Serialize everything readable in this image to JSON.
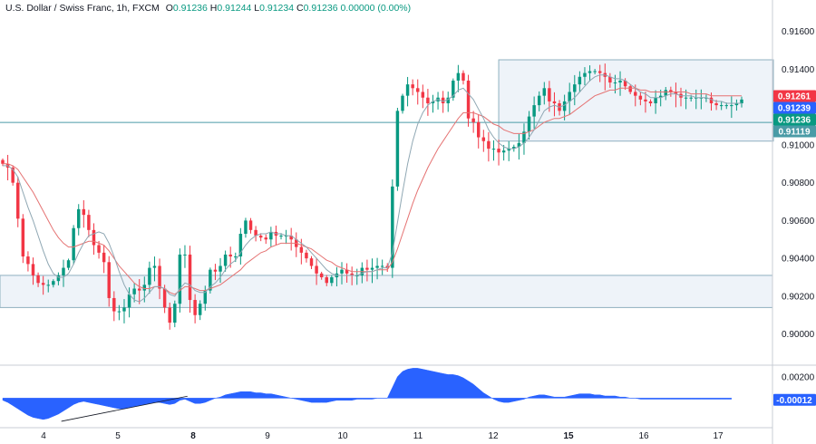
{
  "header": {
    "symbol": "U.S. Dollar / Swiss Franc, 1h, FXCM",
    "open_label": "O",
    "open_value": "0.91236",
    "high_label": "H",
    "high_value": "0.91244",
    "low_label": "L",
    "low_value": "0.91234",
    "close_label": "C",
    "close_value": "0.91236",
    "change": "0.00000 (0.00%)"
  },
  "colors": {
    "up": "#089981",
    "down": "#f23645",
    "ma_fast": "#8fa7b3",
    "ma_slow": "#e57373",
    "histogram": "#2962ff",
    "level_line": "#4a9ba6",
    "zone_fill": "#eef3f9",
    "zone_border": "#8fb0c0"
  },
  "chart_data": {
    "type": "candlestick",
    "price_axis": {
      "ticks": [
        0.916,
        0.914,
        0.912,
        0.91,
        0.908,
        0.906,
        0.904,
        0.902,
        0.9
      ],
      "tick_labels": [
        "0.91600",
        "0.91400",
        "0.91200",
        "0.91000",
        "0.90800",
        "0.90600",
        "0.90400",
        "0.90200",
        "0.90000"
      ],
      "range": [
        0.8984,
        0.9168
      ]
    },
    "time_axis": {
      "labels": [
        "4",
        "5",
        "8",
        "9",
        "10",
        "11",
        "12",
        "15",
        "16",
        "17"
      ],
      "bold": [
        "8",
        "15"
      ]
    },
    "badges": [
      {
        "value": 0.91261,
        "label": "0.91261",
        "color": "#f23645"
      },
      {
        "value": 0.91239,
        "label": "0.91239",
        "color": "#2962ff"
      },
      {
        "value": 0.91236,
        "label": "0.91236",
        "color": "#089981"
      },
      {
        "value": 0.91119,
        "label": "0.91119",
        "color": "#4a9ba6"
      }
    ],
    "horizontal_level": 0.91119,
    "zones": [
      {
        "from": 0.9014,
        "to": 0.9031
      },
      {
        "from": 0.9102,
        "to": 0.9145
      }
    ],
    "closes": [
      0.909,
      0.9088,
      0.908,
      0.9061,
      0.9041,
      0.9037,
      0.9031,
      0.9027,
      0.9026,
      0.9026,
      0.9028,
      0.9031,
      0.9035,
      0.9039,
      0.9056,
      0.9066,
      0.9063,
      0.9055,
      0.9047,
      0.9043,
      0.9038,
      0.9019,
      0.9012,
      0.9012,
      0.9014,
      0.9021,
      0.9024,
      0.9023,
      0.9026,
      0.9035,
      0.9036,
      0.9024,
      0.9014,
      0.9006,
      0.9016,
      0.9042,
      0.9042,
      0.9018,
      0.901,
      0.9016,
      0.9023,
      0.9034,
      0.9033,
      0.9036,
      0.9042,
      0.9041,
      0.9041,
      0.9053,
      0.906,
      0.9055,
      0.9052,
      0.9051,
      0.905,
      0.9054,
      0.9052,
      0.9052,
      0.9052,
      0.905,
      0.9046,
      0.9043,
      0.904,
      0.9036,
      0.9032,
      0.903,
      0.9027,
      0.903,
      0.9032,
      0.9034,
      0.9032,
      0.9031,
      0.9031,
      0.9035,
      0.9034,
      0.9035,
      0.9036,
      0.9036,
      0.9035,
      0.9078,
      0.9118,
      0.9126,
      0.9132,
      0.913,
      0.9128,
      0.9125,
      0.9122,
      0.9123,
      0.9125,
      0.9122,
      0.9125,
      0.9134,
      0.9138,
      0.9134,
      0.9114,
      0.9112,
      0.9104,
      0.9102,
      0.9098,
      0.9098,
      0.9096,
      0.9097,
      0.9098,
      0.9099,
      0.9101,
      0.9107,
      0.9115,
      0.9121,
      0.9126,
      0.913,
      0.9123,
      0.9122,
      0.9118,
      0.9123,
      0.9128,
      0.9132,
      0.9136,
      0.9138,
      0.9139,
      0.9139,
      0.9138,
      0.9136,
      0.9133,
      0.9133,
      0.9134,
      0.9131,
      0.9128,
      0.9126,
      0.9124,
      0.9123,
      0.9122,
      0.9125,
      0.9126,
      0.9129,
      0.9128,
      0.9127,
      0.9125,
      0.9125,
      0.9125,
      0.9125,
      0.9125,
      0.9125,
      0.9122,
      0.9121,
      0.9121,
      0.9121,
      0.9121,
      0.9122,
      0.9124
    ],
    "ma_fast": [
      0.9089,
      0.9089,
      0.9087,
      0.9083,
      0.9075,
      0.9067,
      0.906,
      0.9052,
      0.9044,
      0.9037,
      0.9032,
      0.903,
      0.903,
      0.9032,
      0.9037,
      0.9043,
      0.9048,
      0.9052,
      0.9053,
      0.9054,
      0.9053,
      0.9048,
      0.9041,
      0.9033,
      0.9026,
      0.9021,
      0.9018,
      0.9017,
      0.9019,
      0.9022,
      0.9025,
      0.9025,
      0.9024,
      0.9021,
      0.902,
      0.9024,
      0.9027,
      0.9026,
      0.9023,
      0.9022,
      0.9022,
      0.9025,
      0.9027,
      0.903,
      0.9034,
      0.9037,
      0.9039,
      0.9043,
      0.9047,
      0.905,
      0.9052,
      0.9053,
      0.9053,
      0.9054,
      0.9053,
      0.9053,
      0.9052,
      0.9052,
      0.905,
      0.9048,
      0.9046,
      0.9043,
      0.904,
      0.9037,
      0.9034,
      0.9032,
      0.9031,
      0.9031,
      0.9031,
      0.9031,
      0.9031,
      0.9032,
      0.9033,
      0.9033,
      0.9034,
      0.9035,
      0.9035,
      0.9043,
      0.9059,
      0.9075,
      0.909,
      0.9102,
      0.9111,
      0.9117,
      0.9121,
      0.9123,
      0.9124,
      0.9123,
      0.9124,
      0.9126,
      0.9129,
      0.913,
      0.9127,
      0.9124,
      0.9119,
      0.9114,
      0.9108,
      0.9104,
      0.9101,
      0.9099,
      0.9098,
      0.9098,
      0.9099,
      0.9101,
      0.9104,
      0.9108,
      0.9113,
      0.9118,
      0.912,
      0.9121,
      0.912,
      0.9121,
      0.9123,
      0.9125,
      0.9128,
      0.9131,
      0.9134,
      0.9136,
      0.9137,
      0.9137,
      0.9136,
      0.9135,
      0.9135,
      0.9134,
      0.9132,
      0.913,
      0.9128,
      0.9127,
      0.9125,
      0.9125,
      0.9125,
      0.9126,
      0.9127,
      0.9127,
      0.9126,
      0.9126,
      0.9126,
      0.9125,
      0.9125,
      0.9125,
      0.9124,
      0.9123,
      0.9123,
      0.9122,
      0.9122,
      0.9122,
      0.9122
    ],
    "ma_slow": [
      0.909,
      0.909,
      0.9089,
      0.9087,
      0.9083,
      0.9079,
      0.9075,
      0.907,
      0.9065,
      0.906,
      0.9055,
      0.9051,
      0.9048,
      0.9046,
      0.9046,
      0.9047,
      0.9048,
      0.9049,
      0.9049,
      0.9048,
      0.9047,
      0.9044,
      0.904,
      0.9036,
      0.9033,
      0.903,
      0.9027,
      0.9025,
      0.9024,
      0.9024,
      0.9025,
      0.9025,
      0.9024,
      0.9022,
      0.9021,
      0.9023,
      0.9025,
      0.9025,
      0.9024,
      0.9023,
      0.9023,
      0.9024,
      0.9025,
      0.9026,
      0.9028,
      0.903,
      0.9032,
      0.9034,
      0.9037,
      0.9039,
      0.9041,
      0.9043,
      0.9044,
      0.9046,
      0.9047,
      0.9048,
      0.9048,
      0.9048,
      0.9048,
      0.9047,
      0.9046,
      0.9045,
      0.9043,
      0.9041,
      0.9039,
      0.9038,
      0.9036,
      0.9035,
      0.9034,
      0.9033,
      0.9033,
      0.9033,
      0.9033,
      0.9033,
      0.9034,
      0.9034,
      0.9034,
      0.9038,
      0.9045,
      0.9053,
      0.9061,
      0.9069,
      0.9076,
      0.9082,
      0.9088,
      0.9093,
      0.9098,
      0.9102,
      0.9106,
      0.911,
      0.9114,
      0.9117,
      0.9117,
      0.9117,
      0.9116,
      0.9115,
      0.9113,
      0.9111,
      0.911,
      0.9108,
      0.9107,
      0.9106,
      0.9106,
      0.9106,
      0.9107,
      0.9108,
      0.911,
      0.9112,
      0.9113,
      0.9114,
      0.9114,
      0.9115,
      0.9116,
      0.9118,
      0.912,
      0.9122,
      0.9124,
      0.9126,
      0.9127,
      0.9128,
      0.9129,
      0.9129,
      0.913,
      0.913,
      0.913,
      0.913,
      0.9129,
      0.9129,
      0.9128,
      0.9128,
      0.9128,
      0.9128,
      0.9128,
      0.9128,
      0.9128,
      0.9128,
      0.9127,
      0.9127,
      0.9127,
      0.9127,
      0.9126,
      0.9126,
      0.9126,
      0.9126,
      0.9126,
      0.9126,
      0.9126
    ],
    "oscillator": {
      "ticks": [
        0.002
      ],
      "tick_labels": [
        "0.00200"
      ],
      "current_label": "-0.00012",
      "range": [
        -0.0026,
        0.003
      ],
      "values": [
        -0.0002,
        -0.0004,
        -0.0007,
        -0.001,
        -0.0013,
        -0.0016,
        -0.0018,
        -0.0019,
        -0.002,
        -0.0019,
        -0.0017,
        -0.0015,
        -0.0012,
        -0.0009,
        -0.0006,
        -0.0004,
        -0.0003,
        -0.0004,
        -0.0005,
        -0.0006,
        -0.0007,
        -0.0008,
        -0.0009,
        -0.001,
        -0.001,
        -0.0009,
        -0.0008,
        -0.0007,
        -0.0006,
        -0.0005,
        -0.0004,
        -0.0004,
        -0.0005,
        -0.0006,
        -0.0005,
        -0.0002,
        -0.0001,
        -0.0003,
        -0.0005,
        -0.0005,
        -0.0004,
        -0.0002,
        0.0,
        0.0001,
        0.0003,
        0.0004,
        0.0005,
        0.0006,
        0.0006,
        0.0006,
        0.0005,
        0.0005,
        0.0004,
        0.0004,
        0.0003,
        0.0002,
        0.0001,
        0.0,
        -0.0001,
        -0.0002,
        -0.0003,
        -0.0004,
        -0.0004,
        -0.0004,
        -0.0004,
        -0.0003,
        -0.0002,
        -0.0002,
        -0.0002,
        -0.0002,
        -0.0001,
        -0.0001,
        -0.0001,
        -0.0001,
        0.0,
        0.0,
        0.0,
        0.001,
        0.002,
        0.0025,
        0.0027,
        0.0028,
        0.0028,
        0.0027,
        0.0026,
        0.0025,
        0.0024,
        0.0023,
        0.0022,
        0.0022,
        0.0021,
        0.0019,
        0.0016,
        0.0013,
        0.0009,
        0.0005,
        0.0002,
        -0.0001,
        -0.0003,
        -0.0004,
        -0.0004,
        -0.0003,
        -0.0002,
        -0.0001,
        0.0001,
        0.0002,
        0.0003,
        0.0003,
        0.0002,
        0.0001,
        0.0001,
        0.0001,
        0.0002,
        0.0003,
        0.0004,
        0.0004,
        0.0004,
        0.0003,
        0.0003,
        0.0002,
        0.0002,
        0.0002,
        0.0001,
        0.0001,
        0.0,
        0.0,
        -0.0001,
        -0.0001,
        -0.0001,
        -0.0001,
        -0.0001,
        -0.0001,
        -0.0001,
        -0.0001,
        -0.0001,
        -0.0001,
        -0.0001,
        -0.0001,
        -0.0001,
        -0.0001,
        -0.0001,
        -0.0001,
        -0.0001,
        -0.0001,
        -0.0001
      ]
    },
    "trendline": {
      "from_index": 8,
      "to_index": 34
    }
  }
}
